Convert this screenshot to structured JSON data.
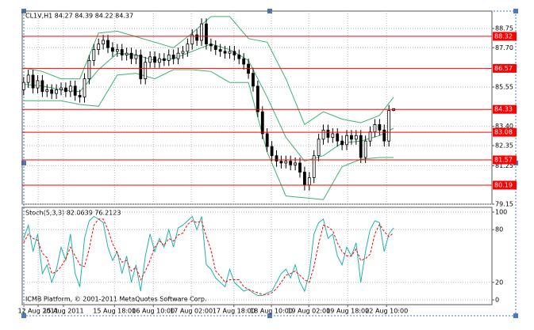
{
  "chart_data": [
    {
      "type": "candlestick",
      "title": "CL1V,H1  84.27 84.39 84.22 84.37",
      "open": [
        85.4,
        85.8,
        86.2,
        85.5,
        85.9,
        85.3,
        85.4,
        85.2,
        85.4,
        85.5,
        85.3,
        85.6,
        85.1,
        85.0,
        86.0,
        87.0,
        87.6,
        87.9,
        88.1,
        87.7,
        87.5,
        87.6,
        87.3,
        87.4,
        87.1,
        87.3,
        86.0,
        86.9,
        87.2,
        86.9,
        87.1,
        87.0,
        87.3,
        87.1,
        87.4,
        87.5,
        87.9,
        88.4,
        88.1,
        89.0,
        87.9,
        87.8,
        87.6,
        87.5,
        87.4,
        87.5,
        87.3,
        87.1,
        86.8,
        86.3,
        85.6,
        84.2,
        83.0,
        82.3,
        81.8,
        81.5,
        81.4,
        81.5,
        81.3,
        81.4,
        80.9,
        80.2,
        80.6,
        81.8,
        82.7,
        83.2,
        82.8,
        83.0,
        82.6,
        82.4,
        82.9,
        82.7,
        82.9,
        81.7,
        82.6,
        83.1,
        83.5,
        83.2,
        82.6,
        84.27
      ],
      "high": [
        86.1,
        86.5,
        86.5,
        86.2,
        86.2,
        85.7,
        85.7,
        85.7,
        85.8,
        85.8,
        85.9,
        85.9,
        85.4,
        86.3,
        87.3,
        87.9,
        88.2,
        88.4,
        88.4,
        88.0,
        87.9,
        87.9,
        87.7,
        87.7,
        87.6,
        87.6,
        87.2,
        87.5,
        87.5,
        87.4,
        87.4,
        87.6,
        87.6,
        87.7,
        87.8,
        88.2,
        88.7,
        88.7,
        89.3,
        89.3,
        88.2,
        88.1,
        87.9,
        87.8,
        87.8,
        87.8,
        87.6,
        87.4,
        87.1,
        86.6,
        85.9,
        84.5,
        83.3,
        82.6,
        82.1,
        81.8,
        81.8,
        81.8,
        81.7,
        81.7,
        81.2,
        80.9,
        82.1,
        83.0,
        83.5,
        83.5,
        83.3,
        83.3,
        82.9,
        83.2,
        83.2,
        83.2,
        83.2,
        82.9,
        83.4,
        83.8,
        83.8,
        83.5,
        84.57,
        84.39
      ],
      "low": [
        85.1,
        85.5,
        85.2,
        85.2,
        85.0,
        85.0,
        84.9,
        84.9,
        85.1,
        85.0,
        85.0,
        84.8,
        84.7,
        84.7,
        85.7,
        86.7,
        87.3,
        87.6,
        87.4,
        87.2,
        87.2,
        87.0,
        87.0,
        86.8,
        86.8,
        85.7,
        85.7,
        86.6,
        86.6,
        86.6,
        86.7,
        86.7,
        86.8,
        86.8,
        87.1,
        87.2,
        87.6,
        87.8,
        87.8,
        87.6,
        87.5,
        87.3,
        87.2,
        87.1,
        87.1,
        87.0,
        86.8,
        86.5,
        86.0,
        85.3,
        83.9,
        82.7,
        82.0,
        81.5,
        81.2,
        81.1,
        81.1,
        81.0,
        81.0,
        80.6,
        79.9,
        79.9,
        80.3,
        81.5,
        82.4,
        82.5,
        82.5,
        82.3,
        82.1,
        82.1,
        82.4,
        82.4,
        81.4,
        81.4,
        82.3,
        82.8,
        82.9,
        82.3,
        82.3,
        84.22
      ],
      "close": [
        85.8,
        86.2,
        85.5,
        85.9,
        85.3,
        85.4,
        85.2,
        85.4,
        85.5,
        85.3,
        85.6,
        85.1,
        85.0,
        86.0,
        87.0,
        87.6,
        87.9,
        88.1,
        87.7,
        87.5,
        87.6,
        87.3,
        87.4,
        87.1,
        87.3,
        86.0,
        86.9,
        87.2,
        86.9,
        87.1,
        87.0,
        87.3,
        87.1,
        87.4,
        87.5,
        87.9,
        88.4,
        88.1,
        89.0,
        87.9,
        87.8,
        87.6,
        87.5,
        87.4,
        87.5,
        87.3,
        87.1,
        86.8,
        86.3,
        85.6,
        84.2,
        83.0,
        82.3,
        81.8,
        81.5,
        81.4,
        81.5,
        81.3,
        81.4,
        80.9,
        80.2,
        80.6,
        81.8,
        82.7,
        83.2,
        82.8,
        83.0,
        82.6,
        82.4,
        82.9,
        82.7,
        82.9,
        81.7,
        82.6,
        83.1,
        83.5,
        83.2,
        82.6,
        84.27,
        84.37
      ],
      "up_color": "#ffffff",
      "down_color": "#000000",
      "candle_outline": "#000000",
      "bands": {
        "color": "#3cb371",
        "x": [
          0,
          4,
          8,
          12,
          16,
          20,
          24,
          28,
          32,
          36,
          40,
          44,
          48,
          52,
          56,
          60,
          64,
          68,
          72,
          76,
          79
        ],
        "upper": [
          86.6,
          86.4,
          86.0,
          86.0,
          88.5,
          88.6,
          88.3,
          88.0,
          87.7,
          88.5,
          89.4,
          89.4,
          88.2,
          88.0,
          86.0,
          83.5,
          84.2,
          83.8,
          83.6,
          84.0,
          85.0
        ],
        "middle": [
          85.7,
          85.6,
          85.4,
          85.3,
          86.5,
          87.4,
          87.3,
          87.0,
          87.1,
          87.5,
          87.9,
          87.6,
          87.0,
          85.0,
          82.8,
          81.5,
          81.8,
          82.5,
          82.6,
          82.9,
          83.3
        ],
        "lower": [
          84.8,
          84.8,
          84.8,
          84.6,
          84.5,
          86.2,
          86.3,
          86.0,
          86.5,
          86.5,
          86.4,
          85.8,
          85.8,
          82.0,
          79.6,
          79.5,
          79.4,
          81.2,
          81.6,
          81.7,
          81.7
        ]
      },
      "levels": [
        88.32,
        86.57,
        84.33,
        83.08,
        81.57,
        80.19
      ],
      "level_color": "#ff0000",
      "xlim": [
        -0.3,
        100
      ],
      "ylim": [
        79.15,
        89.7
      ],
      "yticks": [
        88.75,
        {
          "value": 87.7,
          "label": "87.70"
        },
        85.55,
        {
          "value": 83.4,
          "label": "83.40"
        },
        82.35,
        81.25,
        79.15
      ],
      "xticks": [
        {
          "value": 3.1,
          "label": "12 Aug 2011"
        },
        {
          "value": 8.5,
          "label": "15 Aug 2011"
        },
        {
          "value": 19.4,
          "label": "15 Aug 18:00"
        },
        {
          "value": 27.7,
          "label": "16 Aug 10:00"
        },
        {
          "value": 35.8,
          "label": "17 Aug 02:00"
        },
        {
          "value": 44.9,
          "label": "17 Aug 18:00"
        },
        {
          "value": 52.9,
          "label": "18 Aug 10:00"
        },
        {
          "value": 60.9,
          "label": "19 Aug 02:00"
        },
        {
          "value": 69.2,
          "label": "19 Aug 18:00"
        },
        {
          "value": 77.5,
          "label": "22 Aug 10:00"
        }
      ],
      "grid": true,
      "footer": "ICMB Platform, © 2001-2011 MetaQuotes Software Corp."
    },
    {
      "type": "stochastic",
      "title": "Stoch(5,3,3) 82.0639 76.2123",
      "series": [
        {
          "color": "#20b2aa",
          "dashed": false,
          "values": [
            70,
            85,
            55,
            75,
            30,
            40,
            20,
            35,
            60,
            45,
            75,
            30,
            15,
            70,
            90,
            95,
            92,
            88,
            60,
            45,
            55,
            30,
            50,
            20,
            40,
            10,
            50,
            75,
            55,
            70,
            60,
            80,
            60,
            82,
            85,
            90,
            95,
            80,
            95,
            40,
            35,
            25,
            20,
            15,
            35,
            20,
            15,
            10,
            12,
            8,
            5,
            5,
            8,
            10,
            20,
            30,
            35,
            25,
            40,
            20,
            10,
            30,
            75,
            88,
            92,
            70,
            75,
            50,
            40,
            60,
            50,
            65,
            20,
            55,
            80,
            90,
            88,
            55,
            75,
            82.0639
          ]
        },
        {
          "color": "#ff0000",
          "dashed": true,
          "values": [
            65,
            75,
            70,
            68,
            53,
            48,
            30,
            32,
            38,
            47,
            60,
            50,
            40,
            38,
            58,
            85,
            92,
            92,
            80,
            64,
            53,
            43,
            45,
            33,
            37,
            23,
            33,
            45,
            60,
            67,
            62,
            70,
            67,
            74,
            76,
            86,
            90,
            88,
            90,
            72,
            57,
            33,
            27,
            20,
            23,
            23,
            23,
            15,
            12,
            10,
            8,
            6,
            6,
            8,
            13,
            20,
            28,
            30,
            33,
            28,
            23,
            20,
            38,
            64,
            85,
            83,
            79,
            65,
            55,
            50,
            50,
            58,
            45,
            47,
            52,
            75,
            86,
            78,
            72,
            76.2123
          ]
        }
      ],
      "xlim": [
        -0.3,
        100
      ],
      "ylim": [
        -5.4,
        105.4
      ],
      "yticks": [
        100,
        80,
        20,
        0
      ],
      "grid": true
    }
  ]
}
